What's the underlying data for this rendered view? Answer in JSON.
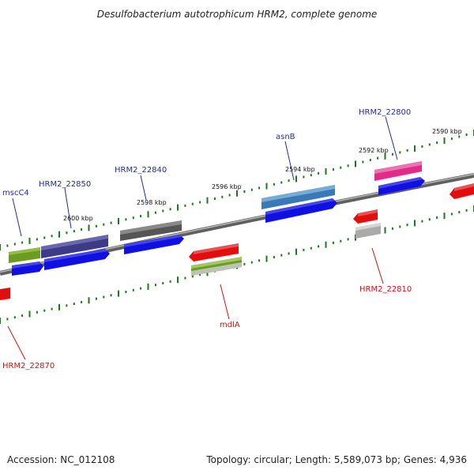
{
  "title": "Desulfobacterium autotrophicum HRM2, complete genome",
  "footer": {
    "accession": "Accession: NC_012108",
    "summary": "Topology: circular; Length: 5,589,073 bp; Genes: 4,936"
  },
  "colors": {
    "backbone": "#808080",
    "tick": "#1a7a1a",
    "blue_label": "#1f2f9f",
    "red_label": "#d01010"
  },
  "kbp_labels": [
    "2600 kbp",
    "2598 kbp",
    "2596 kbp",
    "2594 kbp",
    "2592 kbp",
    "2590 kbp"
  ],
  "gene_labels_top": [
    "mscC4",
    "HRM2_22850",
    "HRM2_22840",
    "asnB",
    "HRM2_22800"
  ],
  "gene_labels_bottom": [
    "mdlA",
    "HRM2_22810",
    "HRM2_22870"
  ]
}
